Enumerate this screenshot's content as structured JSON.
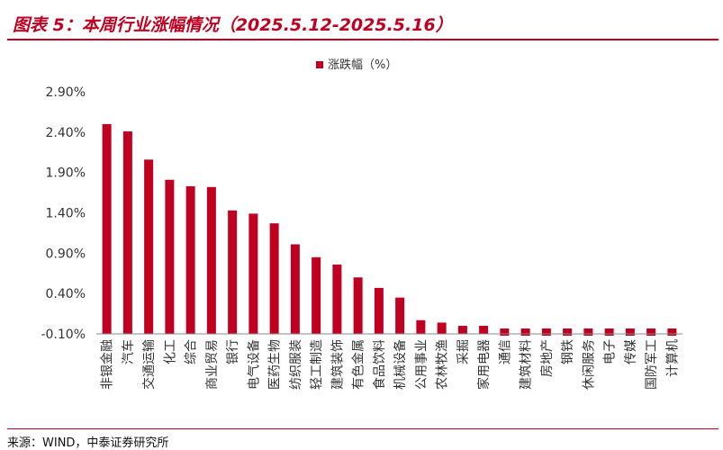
{
  "header": {
    "figure_title": "图表 5：本周行业涨幅情况（2025.5.12-2025.5.16）"
  },
  "footer": {
    "source": "来源：WIND，中泰证券研究所"
  },
  "colors": {
    "bar": "#c00020",
    "title": "#c00020"
  },
  "chart_data": {
    "type": "bar",
    "legend": "涨跌幅（%）",
    "legend_position": "top-center",
    "grid": false,
    "ylim": [
      -0.1,
      2.9
    ],
    "yticks": [
      -0.1,
      0.4,
      0.9,
      1.4,
      1.9,
      2.4,
      2.9
    ],
    "ytick_labels": [
      "-0.10%",
      "0.40%",
      "0.90%",
      "1.40%",
      "1.90%",
      "2.40%",
      "2.90%"
    ],
    "categories": [
      "非银金融",
      "汽车",
      "交通运输",
      "化工",
      "综合",
      "商业贸易",
      "银行",
      "电气设备",
      "医药生物",
      "纺织服装",
      "轻工制造",
      "建筑装饰",
      "有色金属",
      "食品饮料",
      "机械设备",
      "公用事业",
      "农林牧渔",
      "采掘",
      "家用电器",
      "通信",
      "建筑材料",
      "房地产",
      "钢铁",
      "休闲服务",
      "电子",
      "传媒",
      "国防军工",
      "计算机"
    ],
    "values": [
      2.5,
      2.41,
      2.06,
      1.81,
      1.73,
      1.72,
      1.43,
      1.39,
      1.27,
      1.01,
      0.85,
      0.76,
      0.6,
      0.47,
      0.35,
      0.07,
      0.04,
      0.0,
      0.0,
      -0.08,
      -0.08,
      -0.08,
      -0.08,
      -0.09,
      -0.09,
      -0.09,
      -0.09,
      -0.09
    ]
  }
}
